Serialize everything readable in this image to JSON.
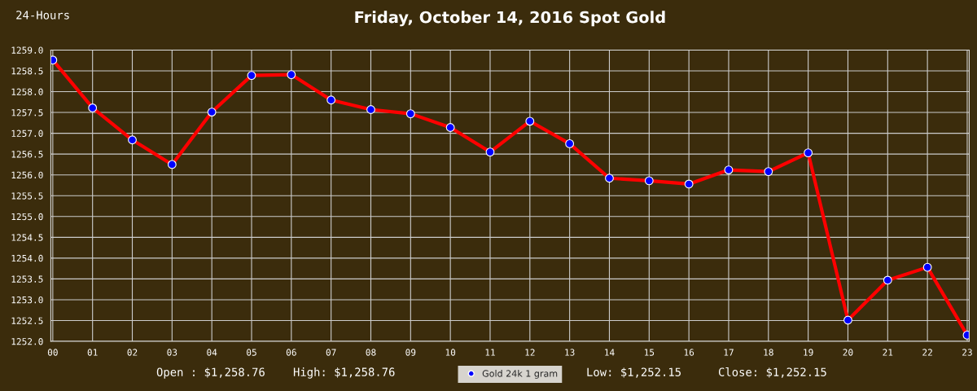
{
  "chart_data": {
    "type": "line",
    "title": "Friday, October 14, 2016 Spot Gold",
    "categories": [
      "00",
      "01",
      "02",
      "03",
      "04",
      "05",
      "06",
      "07",
      "08",
      "09",
      "10",
      "11",
      "12",
      "13",
      "14",
      "15",
      "16",
      "17",
      "18",
      "19",
      "20",
      "21",
      "22",
      "23"
    ],
    "series": [
      {
        "name": "Gold 24k 1 gram",
        "color": "#ff0000",
        "values": [
          1258.76,
          1257.61,
          1256.84,
          1256.25,
          1257.51,
          1258.39,
          1258.41,
          1257.8,
          1257.57,
          1257.47,
          1257.14,
          1256.55,
          1257.29,
          1256.75,
          1255.92,
          1255.86,
          1255.78,
          1256.12,
          1256.08,
          1256.53,
          1252.51,
          1253.47,
          1253.78,
          1252.15
        ]
      }
    ],
    "ylim": [
      1252.0,
      1259.0
    ],
    "yticks": [
      {
        "value": 1252.0,
        "label": "1252.0"
      },
      {
        "value": 1252.5,
        "label": "1252.5"
      },
      {
        "value": 1253.0,
        "label": "1253.0"
      },
      {
        "value": 1253.5,
        "label": "1253.5"
      },
      {
        "value": 1254.0,
        "label": "1254.0"
      },
      {
        "value": 1254.5,
        "label": "1254.5"
      },
      {
        "value": 1255.0,
        "label": "1255.0"
      },
      {
        "value": 1255.5,
        "label": "1255.5"
      },
      {
        "value": 1256.0,
        "label": "1256.0"
      },
      {
        "value": 1256.5,
        "label": "1256.5"
      },
      {
        "value": 1257.0,
        "label": "1257.0"
      },
      {
        "value": 1257.5,
        "label": "1257.5"
      },
      {
        "value": 1258.0,
        "label": "1258.0"
      },
      {
        "value": 1258.5,
        "label": "1258.5"
      },
      {
        "value": 1259.0,
        "label": "1259.0"
      }
    ],
    "grid": true,
    "legend": "bottom",
    "marker": "circle",
    "line_style": "solid",
    "annotations": [
      "24-Hours",
      "Open : $1,258.76",
      "High: $1,258.76",
      "Low: $1,252.15",
      "Close: $1,252.15"
    ]
  }
}
